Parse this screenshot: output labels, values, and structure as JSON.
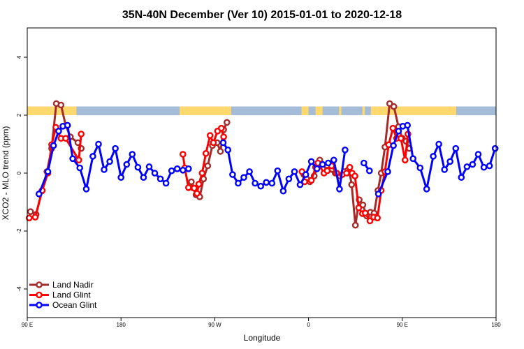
{
  "chart_data": {
    "type": "line",
    "title": "35N-40N December (Ver 10)   2015-01-01 to 2020-12-18",
    "xlabel": "Longitude",
    "ylabel": "XCO2 - MLO trend (ppm)",
    "ylim": [
      -5,
      5
    ],
    "xlim": [
      0,
      1
    ],
    "x_ticks": [
      {
        "label": "90 E",
        "pos": 0.0
      },
      {
        "label": "180",
        "pos": 0.2
      },
      {
        "label": "90 W",
        "pos": 0.4
      },
      {
        "label": "0",
        "pos": 0.6
      },
      {
        "label": "90 E",
        "pos": 0.8
      },
      {
        "label": "180",
        "pos": 1.0
      }
    ],
    "y_ticks": [
      -4,
      -2,
      0,
      2,
      4
    ],
    "grid": false,
    "legend_position": "bottom-left",
    "land_sea_band": {
      "y_range": [
        2.0,
        2.3
      ],
      "land_color": "#ffd86e",
      "ocean_color": "#a4bcd8",
      "land_segments": [
        [
          0.0,
          0.105
        ],
        [
          0.325,
          0.435
        ],
        [
          0.585,
          0.6
        ],
        [
          0.615,
          0.63
        ],
        [
          0.665,
          0.67
        ],
        [
          0.715,
          0.72
        ],
        [
          0.733,
          0.915
        ]
      ]
    },
    "series": [
      {
        "name": "Land Nadir",
        "color": "#a52a2a",
        "segments": [
          [
            [
              0.007,
              -1.33
            ],
            [
              0.019,
              -1.43
            ],
            [
              0.031,
              -0.62
            ],
            [
              0.042,
              0.05
            ],
            [
              0.052,
              0.85
            ],
            [
              0.062,
              2.4
            ],
            [
              0.072,
              2.35
            ],
            [
              0.082,
              1.65
            ],
            [
              0.092,
              1.25
            ],
            [
              0.108,
              1.05
            ],
            [
              0.115,
              0.85
            ]
          ],
          [
            [
              0.35,
              -0.3
            ],
            [
              0.353,
              -0.5
            ],
            [
              0.36,
              -0.75
            ],
            [
              0.368,
              -0.82
            ],
            [
              0.376,
              -0.2
            ],
            [
              0.385,
              0.25
            ],
            [
              0.395,
              0.95
            ],
            [
              0.405,
              1.05
            ],
            [
              0.412,
              0.75
            ],
            [
              0.419,
              1.5
            ],
            [
              0.426,
              1.75
            ]
          ],
          [
            [
              0.59,
              -0.05
            ],
            [
              0.596,
              -0.2
            ],
            [
              0.603,
              -0.3
            ],
            [
              0.612,
              -0.1
            ],
            [
              0.624,
              0.45
            ],
            [
              0.64,
              0.1
            ],
            [
              0.657,
              0.0
            ],
            [
              0.667,
              -0.1
            ],
            [
              0.676,
              0.05
            ],
            [
              0.684,
              0.1
            ],
            [
              0.688,
              0.0
            ],
            [
              0.692,
              -0.4
            ],
            [
              0.7,
              -1.8
            ],
            [
              0.708,
              -0.92
            ],
            [
              0.716,
              -1.1
            ],
            [
              0.724,
              -1.48
            ],
            [
              0.732,
              -1.35
            ],
            [
              0.74,
              -1.38
            ],
            [
              0.748,
              -0.6
            ],
            [
              0.755,
              0.0
            ],
            [
              0.763,
              0.9
            ],
            [
              0.773,
              2.4
            ],
            [
              0.782,
              2.3
            ],
            [
              0.792,
              1.6
            ],
            [
              0.8,
              1.2
            ],
            [
              0.808,
              1.1
            ],
            [
              0.815,
              0.85
            ]
          ]
        ]
      },
      {
        "name": "Land Glint",
        "color": "#ff0000",
        "segments": [
          [
            [
              0.004,
              -1.55
            ],
            [
              0.017,
              -1.52
            ],
            [
              0.032,
              -0.6
            ],
            [
              0.044,
              0.0
            ],
            [
              0.052,
              0.98
            ],
            [
              0.061,
              1.58
            ],
            [
              0.072,
              1.2
            ],
            [
              0.082,
              1.2
            ],
            [
              0.11,
              0.45
            ],
            [
              0.115,
              1.35
            ]
          ],
          [
            [
              0.332,
              0.65
            ],
            [
              0.336,
              0.18
            ],
            [
              0.344,
              -0.5
            ],
            [
              0.356,
              -0.52
            ],
            [
              0.362,
              -0.7
            ],
            [
              0.366,
              -0.38
            ],
            [
              0.373,
              0.0
            ],
            [
              0.381,
              0.68
            ],
            [
              0.39,
              1.3
            ],
            [
              0.397,
              1.05
            ],
            [
              0.406,
              1.45
            ],
            [
              0.414,
              1.55
            ],
            [
              0.419,
              1.25
            ]
          ],
          [
            [
              0.586,
              0.05
            ],
            [
              0.592,
              -0.3
            ],
            [
              0.606,
              -0.25
            ],
            [
              0.615,
              0.2
            ],
            [
              0.62,
              0.35
            ],
            [
              0.633,
              0.0
            ],
            [
              0.64,
              0.08
            ],
            [
              0.649,
              0.25
            ],
            [
              0.66,
              0.0
            ],
            [
              0.672,
              -0.05
            ],
            [
              0.681,
              0.0
            ],
            [
              0.688,
              0.2
            ],
            [
              0.693,
              0.0
            ],
            [
              0.699,
              -0.1
            ],
            [
              0.707,
              -1.2
            ],
            [
              0.715,
              -1.4
            ],
            [
              0.721,
              -1.38
            ],
            [
              0.731,
              -1.65
            ],
            [
              0.739,
              -1.52
            ],
            [
              0.747,
              -1.55
            ],
            [
              0.755,
              -0.6
            ],
            [
              0.763,
              0.05
            ],
            [
              0.771,
              0.98
            ],
            [
              0.78,
              1.55
            ],
            [
              0.788,
              1.2
            ],
            [
              0.797,
              1.2
            ],
            [
              0.806,
              0.45
            ],
            [
              0.812,
              1.35
            ]
          ]
        ]
      },
      {
        "name": "Ocean Glint",
        "color": "#0000ff",
        "segments": [
          [
            [
              0.025,
              -0.72
            ],
            [
              0.044,
              0.05
            ],
            [
              0.056,
              0.95
            ],
            [
              0.067,
              1.45
            ],
            [
              0.076,
              1.62
            ],
            [
              0.086,
              1.65
            ],
            [
              0.097,
              0.5
            ],
            [
              0.112,
              0.18
            ],
            [
              0.126,
              -0.55
            ],
            [
              0.14,
              0.58
            ],
            [
              0.152,
              1.0
            ],
            [
              0.164,
              0.12
            ],
            [
              0.176,
              0.4
            ],
            [
              0.188,
              0.85
            ],
            [
              0.2,
              -0.15
            ],
            [
              0.212,
              0.3
            ],
            [
              0.224,
              0.65
            ],
            [
              0.236,
              0.2
            ],
            [
              0.248,
              -0.15
            ],
            [
              0.26,
              0.22
            ],
            [
              0.272,
              0.0
            ],
            [
              0.284,
              -0.2
            ],
            [
              0.296,
              -0.35
            ],
            [
              0.308,
              0.08
            ],
            [
              0.32,
              0.15
            ],
            [
              0.332,
              0.1
            ],
            [
              0.344,
              0.15
            ]
          ],
          [
            [
              0.418,
              1.05
            ],
            [
              0.428,
              0.8
            ],
            [
              0.438,
              -0.05
            ],
            [
              0.45,
              -0.35
            ],
            [
              0.462,
              -0.15
            ],
            [
              0.474,
              0.05
            ],
            [
              0.486,
              -0.35
            ],
            [
              0.498,
              -0.45
            ],
            [
              0.51,
              -0.32
            ],
            [
              0.522,
              -0.35
            ],
            [
              0.534,
              0.08
            ],
            [
              0.546,
              -0.62
            ],
            [
              0.558,
              -0.2
            ],
            [
              0.57,
              0.05
            ],
            [
              0.582,
              -0.4
            ],
            [
              0.594,
              -0.05
            ],
            [
              0.606,
              0.4
            ],
            [
              0.618,
              0.15
            ],
            [
              0.63,
              0.3
            ],
            [
              0.642,
              0.35
            ],
            [
              0.654,
              0.45
            ],
            [
              0.666,
              -0.55
            ],
            [
              0.678,
              0.8
            ]
          ],
          [
            [
              0.718,
              0.35
            ],
            [
              0.73,
              0.08
            ]
          ],
          [
            [
              0.749,
              -0.72
            ],
            [
              0.769,
              0.05
            ],
            [
              0.781,
              0.95
            ],
            [
              0.792,
              1.45
            ],
            [
              0.801,
              1.62
            ],
            [
              0.811,
              1.65
            ],
            [
              0.823,
              0.5
            ],
            [
              0.838,
              0.18
            ],
            [
              0.852,
              -0.55
            ],
            [
              0.866,
              0.58
            ],
            [
              0.878,
              1.0
            ],
            [
              0.89,
              0.12
            ],
            [
              0.902,
              0.4
            ],
            [
              0.914,
              0.85
            ],
            [
              0.926,
              -0.15
            ],
            [
              0.938,
              0.22
            ],
            [
              0.95,
              0.3
            ],
            [
              0.962,
              0.65
            ],
            [
              0.974,
              0.2
            ],
            [
              0.986,
              0.25
            ],
            [
              0.998,
              0.85
            ]
          ]
        ]
      }
    ]
  }
}
